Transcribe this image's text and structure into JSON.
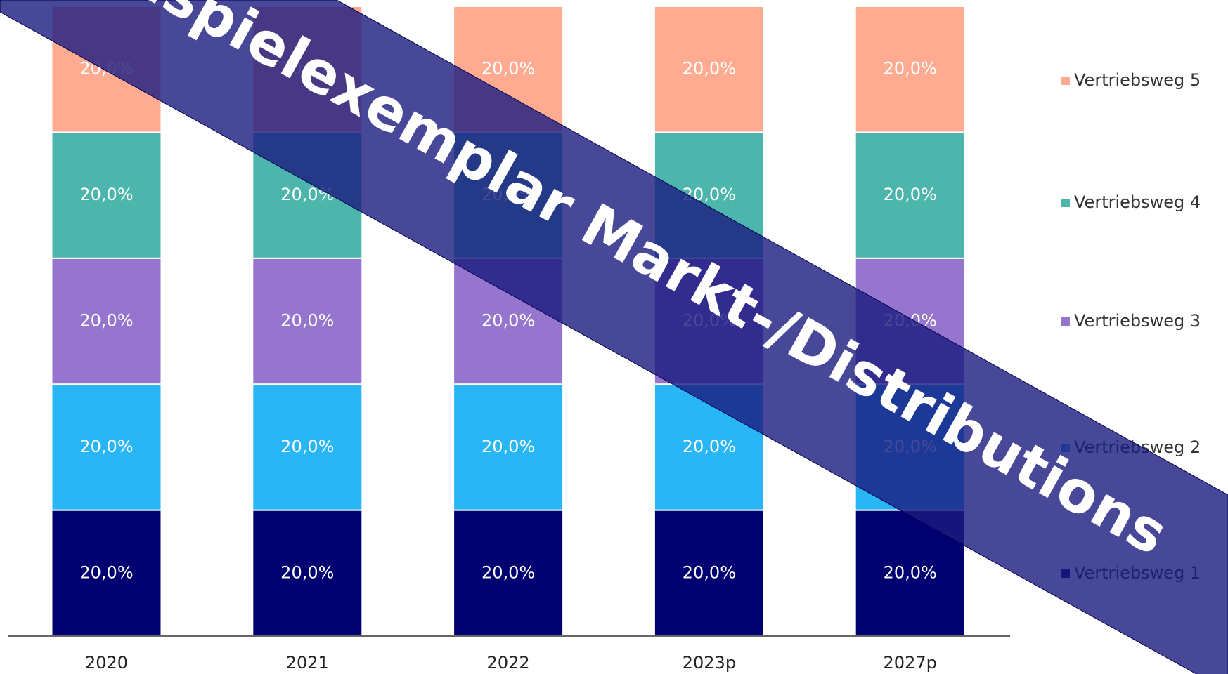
{
  "chart_data": {
    "type": "stacked_bar",
    "categories": [
      "2020",
      "2021",
      "2022",
      "2023p",
      "2027p"
    ],
    "series": [
      {
        "name": "Vertriebsweg 1",
        "color": "#000070",
        "values": [
          20,
          20,
          20,
          20,
          20
        ],
        "value_labels": [
          "20,0%",
          "20,0%",
          "20,0%",
          "20,0%",
          "20,0%"
        ]
      },
      {
        "name": "Vertriebsweg 2",
        "color": "#29b6f6",
        "values": [
          20,
          20,
          20,
          20,
          20
        ],
        "value_labels": [
          "20,0%",
          "20,0%",
          "20,0%",
          "20,0%",
          "20,0%"
        ]
      },
      {
        "name": "Vertriebsweg 3",
        "color": "#9575cd",
        "values": [
          20,
          20,
          20,
          20,
          20
        ],
        "value_labels": [
          "20,0%",
          "20,0%",
          "20,0%",
          "20,0%",
          "20,0%"
        ]
      },
      {
        "name": "Vertriebsweg 4",
        "color": "#4db6ac",
        "values": [
          20,
          20,
          20,
          20,
          20
        ],
        "value_labels": [
          "20,0%",
          "20,0%",
          "20,0%",
          "20,0%",
          "20,0%"
        ]
      },
      {
        "name": "Vertriebsweg 5",
        "color": "#ffab91",
        "values": [
          20,
          20,
          20,
          20,
          20
        ],
        "value_labels": [
          "20,0%",
          "20,0%",
          "20,0%",
          "20,0%",
          "20,0%"
        ]
      }
    ],
    "ylim": [
      0,
      100
    ],
    "legend": "right",
    "watermark": "Beispielexemplar Markt-/Distributions"
  }
}
